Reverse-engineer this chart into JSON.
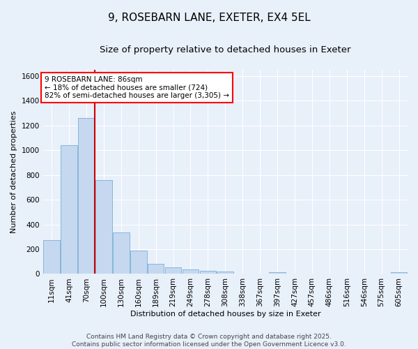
{
  "title": "9, ROSEBARN LANE, EXETER, EX4 5EL",
  "subtitle": "Size of property relative to detached houses in Exeter",
  "xlabel": "Distribution of detached houses by size in Exeter",
  "ylabel": "Number of detached properties",
  "bar_color": "#c5d8f0",
  "bar_edge_color": "#7aafd4",
  "background_color": "#e8f0fa",
  "grid_color": "#ffffff",
  "vline_color": "#cc0000",
  "categories": [
    "11sqm",
    "41sqm",
    "70sqm",
    "100sqm",
    "130sqm",
    "160sqm",
    "189sqm",
    "219sqm",
    "249sqm",
    "278sqm",
    "308sqm",
    "338sqm",
    "367sqm",
    "397sqm",
    "427sqm",
    "457sqm",
    "486sqm",
    "516sqm",
    "546sqm",
    "575sqm",
    "605sqm"
  ],
  "bar_heights": [
    275,
    1040,
    1260,
    760,
    335,
    190,
    80,
    55,
    35,
    25,
    20,
    5,
    5,
    15,
    5,
    5,
    0,
    5,
    0,
    0,
    15
  ],
  "ylim": [
    0,
    1650
  ],
  "yticks": [
    0,
    200,
    400,
    600,
    800,
    1000,
    1200,
    1400,
    1600
  ],
  "vline_x_index": 2,
  "annotation_text": "9 ROSEBARN LANE: 86sqm\n← 18% of detached houses are smaller (724)\n82% of semi-detached houses are larger (3,305) →",
  "footer_line1": "Contains HM Land Registry data © Crown copyright and database right 2025.",
  "footer_line2": "Contains public sector information licensed under the Open Government Licence v3.0.",
  "title_fontsize": 11,
  "subtitle_fontsize": 9.5,
  "axis_label_fontsize": 8,
  "tick_fontsize": 7.5,
  "annotation_fontsize": 7.5,
  "footer_fontsize": 6.5
}
